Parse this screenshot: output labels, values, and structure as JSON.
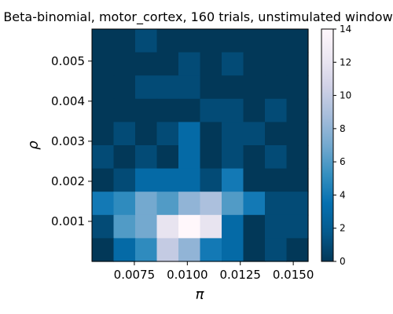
{
  "chart_data": {
    "type": "heatmap",
    "title": "Beta-binomial, motor_cortex, 160 trials, unstimulated window",
    "xlabel": "π",
    "ylabel": "ρ",
    "x_range": [
      0.0055,
      0.0157
    ],
    "y_range": [
      0.0,
      0.0058
    ],
    "x_ticks": [
      0.0075,
      0.01,
      0.0125,
      0.015
    ],
    "x_tick_labels": [
      "0.0075",
      "0.0100",
      "0.0125",
      "0.0150"
    ],
    "y_ticks": [
      0.001,
      0.002,
      0.003,
      0.004,
      0.005
    ],
    "y_tick_labels": [
      "0.001",
      "0.002",
      "0.003",
      "0.004",
      "0.005"
    ],
    "colorbar": {
      "min": 0,
      "max": 14,
      "ticks": [
        0,
        2,
        4,
        6,
        8,
        10,
        12,
        14
      ],
      "tick_labels": [
        "0",
        "2",
        "4",
        "6",
        "8",
        "10",
        "12",
        "14"
      ],
      "colormap": "PuBu_r",
      "stops": [
        "#023858",
        "#045a8d",
        "#0570b0",
        "#3690c0",
        "#74a9cf",
        "#a6bddb",
        "#d0d1e6",
        "#ece7f2",
        "#fff7fb"
      ]
    },
    "grid_rows_top_to_bottom": [
      [
        0,
        0,
        1,
        0,
        0,
        0,
        0,
        0,
        0,
        0
      ],
      [
        0,
        0,
        0,
        0,
        1,
        0,
        1,
        0,
        0,
        0
      ],
      [
        0,
        0,
        1,
        1,
        1,
        0,
        0,
        0,
        0,
        0
      ],
      [
        0,
        0,
        0,
        0,
        0,
        1,
        1,
        0,
        1,
        0
      ],
      [
        0,
        1,
        0,
        1,
        3,
        0,
        1,
        1,
        0,
        0
      ],
      [
        1,
        0,
        1,
        0,
        3,
        0,
        1,
        0,
        1,
        0
      ],
      [
        0,
        1,
        3,
        3,
        3,
        1,
        4,
        0,
        0,
        0
      ],
      [
        4,
        5,
        7,
        6,
        8,
        9,
        6,
        4,
        1,
        1
      ],
      [
        1,
        6,
        7,
        12,
        14,
        12,
        3,
        0,
        1,
        1
      ],
      [
        0,
        3,
        5,
        10,
        8,
        4,
        3,
        0,
        1,
        0
      ]
    ]
  }
}
